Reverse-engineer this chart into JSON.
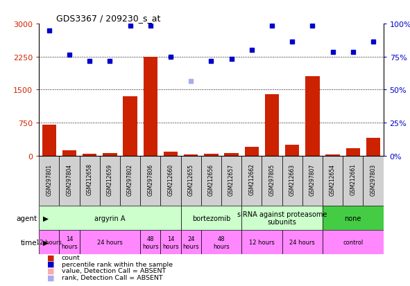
{
  "title": "GDS3367 / 209230_s_at",
  "samples": [
    "GSM297801",
    "GSM297804",
    "GSM212658",
    "GSM212659",
    "GSM297802",
    "GSM297806",
    "GSM212660",
    "GSM212655",
    "GSM212656",
    "GSM212657",
    "GSM212662",
    "GSM297805",
    "GSM212663",
    "GSM297807",
    "GSM212654",
    "GSM212661",
    "GSM297803"
  ],
  "bar_values": [
    710,
    120,
    40,
    50,
    1350,
    2250,
    90,
    30,
    40,
    50,
    200,
    1400,
    250,
    1800,
    30,
    170,
    400
  ],
  "bar_absent": [
    false,
    false,
    false,
    false,
    false,
    false,
    false,
    false,
    false,
    false,
    false,
    false,
    false,
    false,
    false,
    false,
    false
  ],
  "dot_values": [
    2850,
    2300,
    2150,
    2150,
    2950,
    2960,
    2250,
    1700,
    2150,
    2200,
    2400,
    2950,
    2600,
    2960,
    2350,
    2350,
    2600
  ],
  "dot_absent": [
    false,
    false,
    false,
    false,
    false,
    false,
    false,
    true,
    false,
    false,
    false,
    false,
    false,
    false,
    false,
    false,
    false
  ],
  "ylim_left": [
    0,
    3000
  ],
  "yticks_left": [
    0,
    750,
    1500,
    2250,
    3000
  ],
  "ytick_labels_right": [
    "0%",
    "25%",
    "50%",
    "75%",
    "100%"
  ],
  "bar_color": "#cc2200",
  "bar_absent_color": "#ffaaaa",
  "dot_color": "#0000cc",
  "dot_absent_color": "#aaaaee",
  "agent_groups": [
    {
      "label": "argyrin A",
      "start": 0,
      "end": 7,
      "color": "#ccffcc"
    },
    {
      "label": "bortezomib",
      "start": 7,
      "end": 10,
      "color": "#ccffcc"
    },
    {
      "label": "siRNA against proteasome\nsubunits",
      "start": 10,
      "end": 14,
      "color": "#ccffcc"
    },
    {
      "label": "none",
      "start": 14,
      "end": 17,
      "color": "#44cc44"
    }
  ],
  "time_groups": [
    {
      "label": "12 hours",
      "start": 0,
      "end": 1,
      "color": "#ff88ff"
    },
    {
      "label": "14\nhours",
      "start": 1,
      "end": 2,
      "color": "#ff88ff"
    },
    {
      "label": "24 hours",
      "start": 2,
      "end": 5,
      "color": "#ff88ff"
    },
    {
      "label": "48\nhours",
      "start": 5,
      "end": 6,
      "color": "#ff88ff"
    },
    {
      "label": "14\nhours",
      "start": 6,
      "end": 7,
      "color": "#ff88ff"
    },
    {
      "label": "24\nhours",
      "start": 7,
      "end": 8,
      "color": "#ff88ff"
    },
    {
      "label": "48\nhours",
      "start": 8,
      "end": 10,
      "color": "#ff88ff"
    },
    {
      "label": "12 hours",
      "start": 10,
      "end": 12,
      "color": "#ff88ff"
    },
    {
      "label": "24 hours",
      "start": 12,
      "end": 14,
      "color": "#ff88ff"
    },
    {
      "label": "control",
      "start": 14,
      "end": 17,
      "color": "#ff88ff"
    }
  ],
  "legend_items": [
    {
      "label": "count",
      "color": "#cc2200"
    },
    {
      "label": "percentile rank within the sample",
      "color": "#0000cc"
    },
    {
      "label": "value, Detection Call = ABSENT",
      "color": "#ffaaaa"
    },
    {
      "label": "rank, Detection Call = ABSENT",
      "color": "#aaaaee"
    }
  ],
  "sample_box_color": "#d0d0d0",
  "grid_color": "#000000",
  "hgrid_vals": [
    750,
    1500,
    2250
  ]
}
